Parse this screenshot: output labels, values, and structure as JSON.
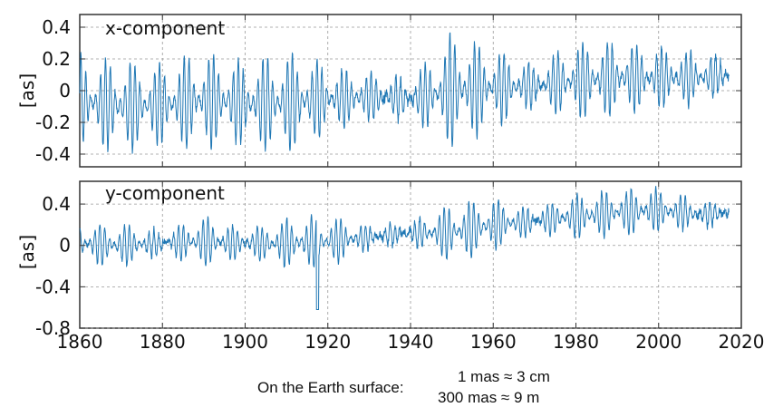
{
  "chart_data": [
    {
      "type": "line",
      "title": "x-component",
      "ylabel": "[as]",
      "xlim": [
        1860,
        2020
      ],
      "ylim": [
        -0.48,
        0.48
      ],
      "yticks": [
        0.4,
        0.2,
        0,
        -0.2,
        -0.4
      ],
      "ytick_labels": [
        "0.4",
        "0.2",
        "0",
        "-0.2",
        "-0.4"
      ],
      "grid": true,
      "series": [
        {
          "color": "#1f77b4",
          "x": [
            1860,
            1870,
            1880,
            1890,
            1900,
            1910,
            1920,
            1930,
            1940,
            1950,
            1960,
            1970,
            1980,
            1990,
            2000,
            2010,
            2017
          ],
          "amplitude": [
            0.3,
            0.3,
            0.27,
            0.32,
            0.27,
            0.34,
            0.22,
            0.16,
            0.12,
            0.38,
            0.26,
            0.14,
            0.26,
            0.24,
            0.2,
            0.17,
            0.12
          ],
          "center": [
            -0.07,
            -0.1,
            -0.09,
            -0.06,
            -0.08,
            -0.08,
            -0.05,
            -0.04,
            -0.05,
            0.0,
            0.02,
            0.03,
            0.06,
            0.08,
            0.08,
            0.08,
            0.1
          ]
        }
      ]
    },
    {
      "type": "line",
      "title": "y-component",
      "ylabel": "[as]",
      "xlim": [
        1860,
        2020
      ],
      "ylim": [
        -0.8,
        0.62
      ],
      "yticks": [
        0.4,
        0,
        -0.4,
        -0.8
      ],
      "ytick_labels": [
        "0.4",
        "0",
        "-0.4",
        "-0.8"
      ],
      "grid": true,
      "series": [
        {
          "color": "#1f77b4",
          "x": [
            1860,
            1870,
            1880,
            1890,
            1900,
            1910,
            1920,
            1930,
            1940,
            1950,
            1960,
            1970,
            1980,
            1990,
            2000,
            2010,
            2017
          ],
          "amplitude": [
            0.2,
            0.22,
            0.12,
            0.25,
            0.14,
            0.25,
            0.26,
            0.12,
            0.1,
            0.3,
            0.26,
            0.12,
            0.22,
            0.24,
            0.22,
            0.14,
            0.1
          ],
          "center": [
            0.02,
            0.0,
            0.02,
            0.04,
            0.02,
            0.02,
            0.04,
            0.08,
            0.12,
            0.12,
            0.2,
            0.24,
            0.28,
            0.32,
            0.34,
            0.3,
            0.32
          ]
        }
      ]
    }
  ],
  "xaxis": {
    "ticks": [
      1860,
      1880,
      1900,
      1920,
      1940,
      1960,
      1980,
      2000,
      2020
    ],
    "tick_labels": [
      "1860",
      "1880",
      "1900",
      "1920",
      "1940",
      "1960",
      "1980",
      "2000",
      "2020"
    ]
  },
  "footnote": {
    "label": "On the Earth surface:",
    "line1": "1 mas ≈ 3 cm",
    "line2": "300 mas ≈ 9 m"
  }
}
